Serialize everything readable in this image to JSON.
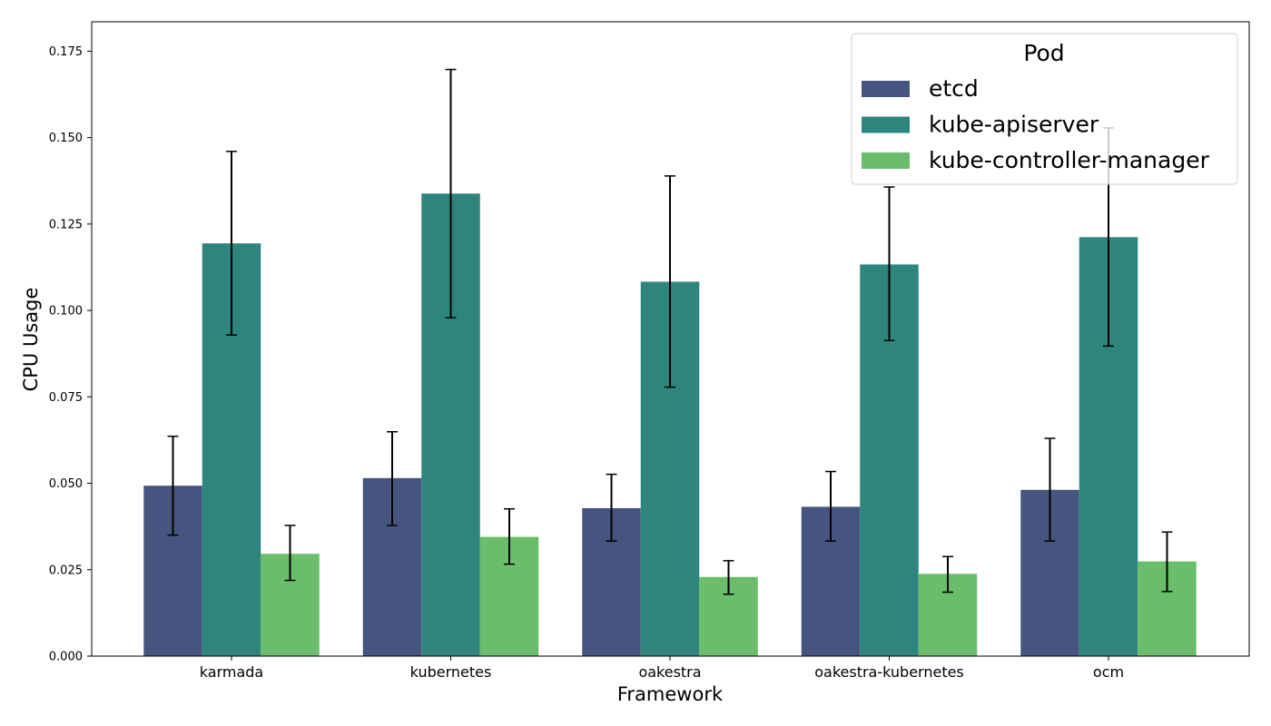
{
  "chart_data": {
    "type": "bar",
    "title": "",
    "xlabel": "Framework",
    "ylabel": "CPU Usage",
    "categories": [
      "karmada",
      "kubernetes",
      "oakestra",
      "oakestra-kubernetes",
      "ocm"
    ],
    "ylim": [
      0,
      0.1835
    ],
    "yticks": [
      0.0,
      0.025,
      0.05,
      0.075,
      0.1,
      0.125,
      0.15,
      0.175
    ],
    "ytick_labels": [
      "0.000",
      "0.025",
      "0.050",
      "0.075",
      "0.100",
      "0.125",
      "0.150",
      "0.175"
    ],
    "grid": false,
    "legend": {
      "title": "Pod",
      "position": "top-right"
    },
    "series": [
      {
        "name": "etcd",
        "color": "#46557f",
        "values": [
          0.0493,
          0.0515,
          0.0428,
          0.0432,
          0.0481
        ],
        "err_low": [
          0.035,
          0.0378,
          0.0333,
          0.0333,
          0.0333
        ],
        "err_high": [
          0.0636,
          0.0649,
          0.0526,
          0.0534,
          0.063
        ]
      },
      {
        "name": "kube-apiserver",
        "color": "#2e857e",
        "values": [
          0.1194,
          0.1338,
          0.1083,
          0.1133,
          0.1212
        ],
        "err_low": [
          0.0929,
          0.0979,
          0.0778,
          0.0913,
          0.0897
        ],
        "err_high": [
          0.146,
          0.1697,
          0.1389,
          0.1357,
          0.1528
        ]
      },
      {
        "name": "kube-controller-manager",
        "color": "#6abd6a",
        "values": [
          0.0296,
          0.0345,
          0.0229,
          0.0238,
          0.0274
        ],
        "err_low": [
          0.0219,
          0.0266,
          0.0179,
          0.0185,
          0.0187
        ],
        "err_high": [
          0.0378,
          0.0426,
          0.0276,
          0.0288,
          0.0359
        ]
      }
    ]
  }
}
